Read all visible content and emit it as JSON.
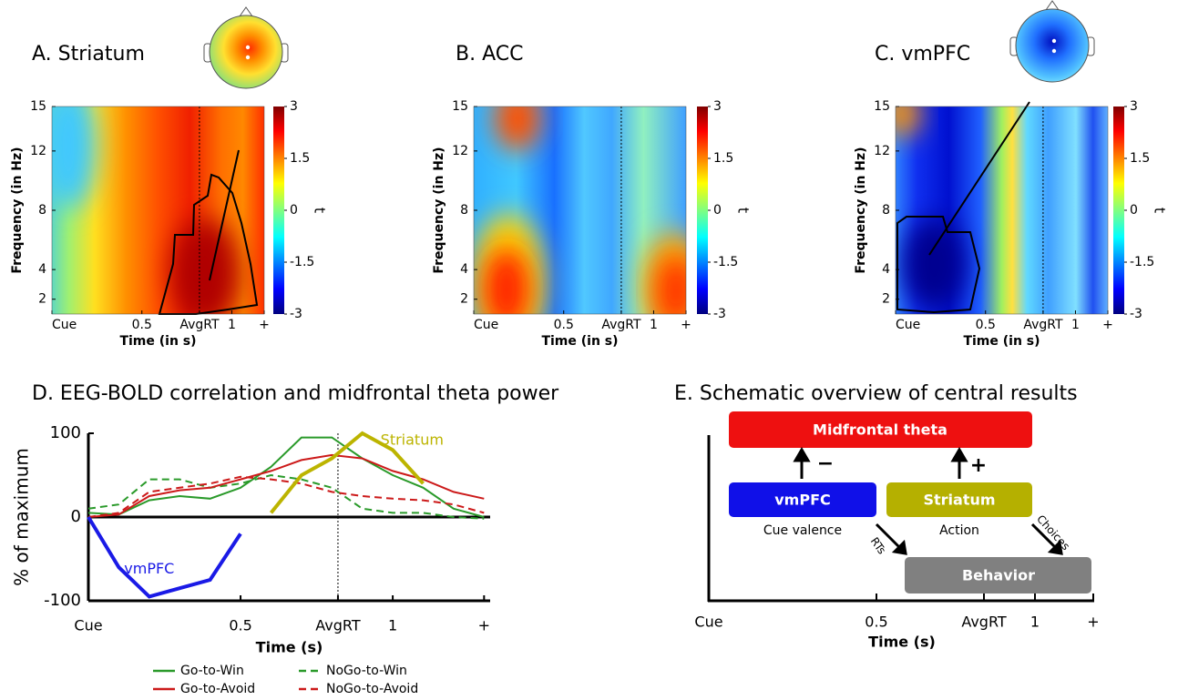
{
  "chart_data": [
    {
      "type": "heatmap",
      "title": "A. Striatum",
      "xlabel": "Time (in s)",
      "ylabel": "Frequency (in Hz)",
      "xlim": [
        0,
        1.18
      ],
      "xticks": [
        {
          "value": 0,
          "label": "Cue"
        },
        0.5,
        {
          "value": 0.82,
          "label": "AvgRT"
        },
        1,
        {
          "value": 1.18,
          "label": "+"
        }
      ],
      "ylim": [
        1,
        15
      ],
      "yticks": [
        2,
        4,
        8,
        12,
        15
      ],
      "clim": [
        -3,
        3
      ],
      "cticks": [
        3,
        1.5,
        0,
        -1.5,
        -3
      ],
      "colorbar_label": "t"
    },
    {
      "type": "heatmap",
      "title": "B. ACC",
      "xlabel": "Time (in s)",
      "ylabel": "Frequency (in Hz)",
      "xlim": [
        0,
        1.18
      ],
      "xticks": [
        {
          "value": 0,
          "label": "Cue"
        },
        0.5,
        {
          "value": 0.82,
          "label": "AvgRT"
        },
        1,
        {
          "value": 1.18,
          "label": "+"
        }
      ],
      "ylim": [
        1,
        15
      ],
      "yticks": [
        2,
        4,
        8,
        12,
        15
      ],
      "clim": [
        -3,
        3
      ],
      "cticks": [
        3,
        1.5,
        0,
        -1.5,
        -3
      ],
      "colorbar_label": "t"
    },
    {
      "type": "heatmap",
      "title": "C. vmPFC",
      "xlabel": "Time (in s)",
      "ylabel": "Frequency (in Hz)",
      "xlim": [
        0,
        1.18
      ],
      "xticks": [
        {
          "value": 0,
          "label": "Cue"
        },
        0.5,
        {
          "value": 0.82,
          "label": "AvgRT"
        },
        1,
        {
          "value": 1.18,
          "label": "+"
        }
      ],
      "ylim": [
        1,
        15
      ],
      "yticks": [
        2,
        4,
        8,
        12,
        15
      ],
      "clim": [
        -3,
        3
      ],
      "cticks": [
        3,
        1.5,
        0,
        -1.5,
        -3
      ],
      "colorbar_label": "t"
    },
    {
      "type": "line",
      "title": "D. EEG-BOLD correlation and midfrontal theta power",
      "xlabel": "Time (s)",
      "ylabel": "% of maximum",
      "xlim": [
        0,
        1.32
      ],
      "xticks": [
        {
          "value": 0,
          "label": "Cue"
        },
        0.5,
        {
          "value": 0.82,
          "label": "AvgRT"
        },
        1,
        {
          "value": 1.3,
          "label": "+"
        }
      ],
      "ylim": [
        -100,
        100
      ],
      "yticks": [
        -100,
        0,
        100
      ],
      "x": [
        0,
        0.1,
        0.2,
        0.3,
        0.4,
        0.5,
        0.6,
        0.7,
        0.8,
        0.9,
        1.0,
        1.1,
        1.2,
        1.3
      ],
      "series": [
        {
          "name": "Go-to-Win",
          "color": "#2a9a2a",
          "dashed": false,
          "values": [
            5,
            3,
            20,
            25,
            22,
            35,
            60,
            95,
            95,
            70,
            50,
            35,
            10,
            0
          ]
        },
        {
          "name": "NoGo-to-Win",
          "color": "#2a9a2a",
          "dashed": true,
          "values": [
            10,
            15,
            45,
            45,
            35,
            40,
            50,
            45,
            35,
            10,
            5,
            5,
            0,
            -2
          ]
        },
        {
          "name": "Go-to-Avoid",
          "color": "#cc1a1a",
          "dashed": false,
          "values": [
            0,
            3,
            25,
            32,
            35,
            45,
            55,
            68,
            74,
            70,
            55,
            45,
            30,
            22
          ]
        },
        {
          "name": "NoGo-to-Avoid",
          "color": "#cc1a1a",
          "dashed": true,
          "values": [
            0,
            5,
            30,
            35,
            40,
            48,
            45,
            40,
            30,
            25,
            22,
            20,
            15,
            5
          ]
        }
      ],
      "annotated_series": [
        {
          "name": "Striatum",
          "color": "#bcb400",
          "values": [
            null,
            null,
            null,
            null,
            null,
            null,
            5,
            50,
            70,
            100,
            80,
            40,
            null,
            null
          ]
        },
        {
          "name": "vmPFC",
          "color": "#1a1ae6",
          "values": [
            0,
            -60,
            -95,
            -85,
            -75,
            -20,
            null,
            null,
            null,
            null,
            null,
            null,
            null,
            null
          ]
        }
      ],
      "legend": "bottom"
    }
  ],
  "schematic": {
    "title": "E. Schematic overview of central results",
    "theta": "Midfrontal theta",
    "vmpfc": "vmPFC",
    "striatum": "Striatum",
    "behavior": "Behavior",
    "minus": "−",
    "plus": "+",
    "cue_valence": "Cue valence",
    "action": "Action",
    "rts": "RTs",
    "choices": "Choices",
    "xticks": [
      "Cue",
      "0.5",
      "AvgRT",
      "1",
      "+"
    ],
    "xlabel": "Time (s)"
  }
}
